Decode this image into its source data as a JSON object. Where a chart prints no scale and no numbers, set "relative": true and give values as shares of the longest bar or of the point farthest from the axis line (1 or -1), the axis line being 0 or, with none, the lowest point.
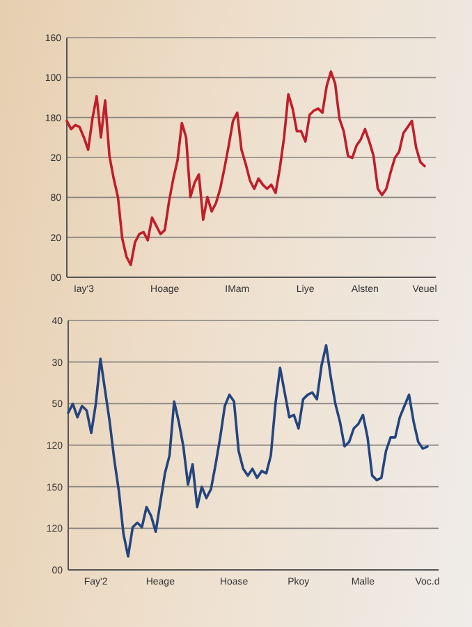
{
  "chart_data": [
    {
      "type": "line",
      "relative": true,
      "grid": "y",
      "marker": "none",
      "line_style": "solid",
      "annotations": [
        "00",
        "20",
        "80",
        "20",
        "180",
        "100",
        "160"
      ],
      "categories": [
        null,
        null,
        null,
        null,
        "Iay'3",
        null,
        null,
        null,
        null,
        null,
        null,
        null,
        null,
        null,
        null,
        null,
        null,
        null,
        null,
        null,
        null,
        null,
        null,
        "Hoage",
        null,
        null,
        null,
        null,
        null,
        null,
        null,
        null,
        null,
        null,
        null,
        null,
        null,
        null,
        null,
        null,
        "IMam",
        null,
        null,
        null,
        null,
        null,
        null,
        null,
        null,
        null,
        null,
        null,
        null,
        null,
        null,
        null,
        "Liye",
        null,
        null,
        null,
        null,
        null,
        null,
        null,
        null,
        null,
        null,
        null,
        null,
        null,
        "Alsten",
        null,
        null,
        null,
        null,
        null,
        null,
        null,
        null,
        null,
        null,
        null,
        null,
        null,
        "Veuel"
      ],
      "series": [
        {
          "color": "#c01e2a",
          "values": [
            0.76,
            0.72,
            0.74,
            0.73,
            0.68,
            0.62,
            0.77,
            0.88,
            0.68,
            0.86,
            0.59,
            0.48,
            0.39,
            0.19,
            0.1,
            0.06,
            0.17,
            0.21,
            0.22,
            0.18,
            0.29,
            0.25,
            0.21,
            0.23,
            0.37,
            0.48,
            0.57,
            0.75,
            0.68,
            0.39,
            0.46,
            0.5,
            0.28,
            0.39,
            0.32,
            0.36,
            0.43,
            0.53,
            0.64,
            0.76,
            0.8,
            0.62,
            0.55,
            0.47,
            0.43,
            0.48,
            0.45,
            0.43,
            0.45,
            0.41,
            0.53,
            0.68,
            0.89,
            0.82,
            0.71,
            0.71,
            0.66,
            0.79,
            0.81,
            0.82,
            0.8,
            0.93,
            1,
            0.94,
            0.77,
            0.71,
            0.59,
            0.58,
            0.64,
            0.67,
            0.72,
            0.66,
            0.59,
            0.43,
            0.4,
            0.43,
            0.51,
            0.58,
            0.61,
            0.7,
            0.73,
            0.76,
            0.63,
            0.56,
            0.54
          ]
        }
      ]
    },
    {
      "type": "line",
      "relative": true,
      "grid": "y",
      "marker": "none",
      "line_style": "solid",
      "annotations": [
        "00",
        "120",
        "150",
        "120",
        "50",
        "30",
        "40"
      ],
      "categories": [
        null,
        null,
        null,
        null,
        null,
        null,
        "Fay'2",
        null,
        null,
        null,
        null,
        null,
        null,
        null,
        null,
        null,
        null,
        null,
        null,
        null,
        "Heage",
        null,
        null,
        null,
        null,
        null,
        null,
        null,
        null,
        null,
        null,
        null,
        null,
        null,
        null,
        null,
        "Hoase",
        null,
        null,
        null,
        null,
        null,
        null,
        null,
        null,
        null,
        null,
        null,
        null,
        null,
        "Pkoy",
        null,
        null,
        null,
        null,
        null,
        null,
        null,
        null,
        null,
        null,
        null,
        null,
        null,
        "Malle",
        null,
        null,
        null,
        null,
        null,
        null,
        null,
        null,
        null,
        null,
        null,
        null,
        null,
        "Voc.d"
      ],
      "series": [
        {
          "color": "#24457e",
          "values": [
            0.7,
            0.74,
            0.68,
            0.73,
            0.71,
            0.61,
            0.74,
            0.94,
            0.8,
            0.66,
            0.49,
            0.35,
            0.16,
            0.06,
            0.19,
            0.21,
            0.19,
            0.28,
            0.24,
            0.17,
            0.3,
            0.43,
            0.51,
            0.75,
            0.66,
            0.55,
            0.38,
            0.47,
            0.28,
            0.37,
            0.32,
            0.36,
            0.47,
            0.59,
            0.73,
            0.78,
            0.75,
            0.53,
            0.45,
            0.42,
            0.45,
            0.41,
            0.44,
            0.43,
            0.51,
            0.74,
            0.9,
            0.79,
            0.68,
            0.69,
            0.63,
            0.76,
            0.78,
            0.79,
            0.76,
            0.91,
            1,
            0.86,
            0.74,
            0.66,
            0.55,
            0.57,
            0.63,
            0.65,
            0.69,
            0.59,
            0.42,
            0.4,
            0.41,
            0.53,
            0.59,
            0.59,
            0.68,
            0.73,
            0.78,
            0.66,
            0.57,
            0.54,
            0.55
          ]
        }
      ]
    }
  ]
}
